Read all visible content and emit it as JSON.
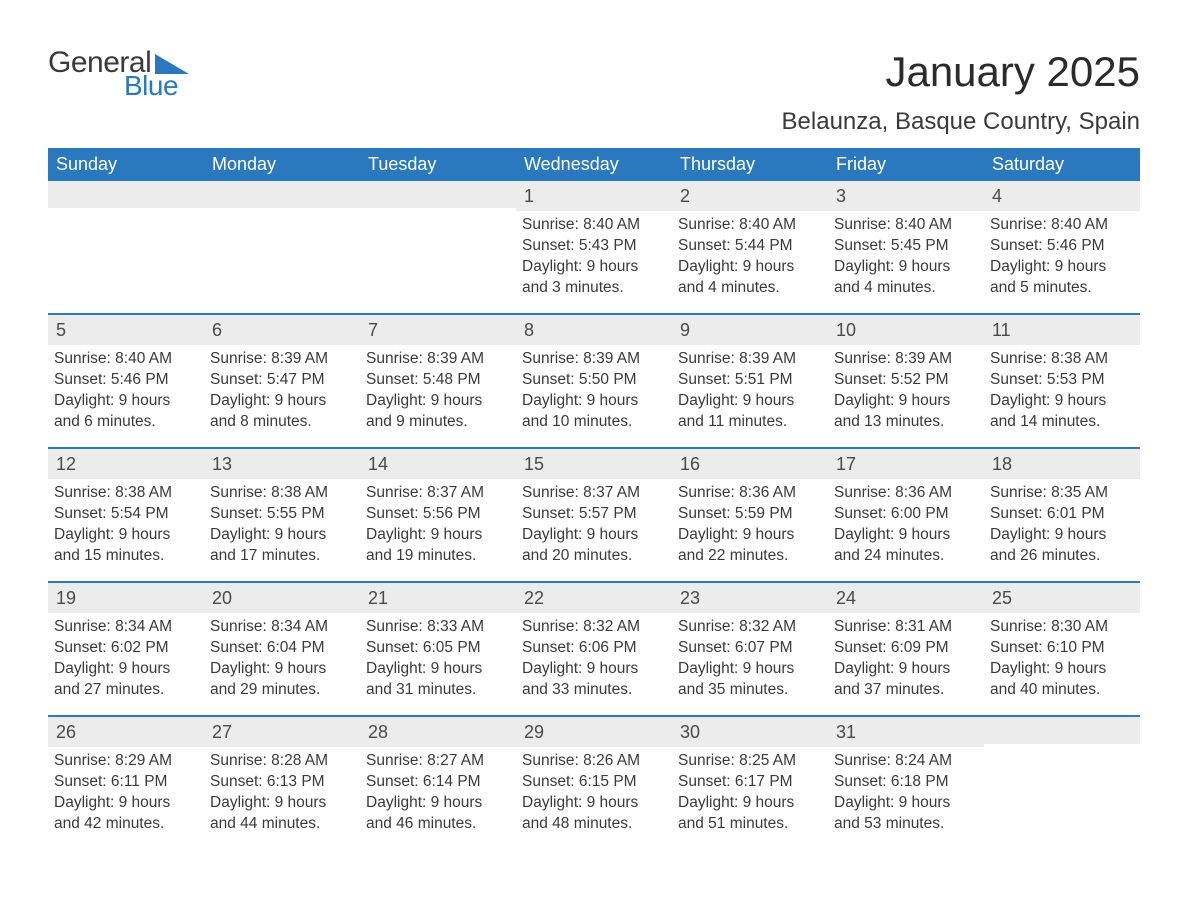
{
  "logo": {
    "general": "General",
    "blue": "Blue",
    "accent_color": "#2a78bd"
  },
  "title": "January 2025",
  "subtitle": "Belaunza, Basque Country, Spain",
  "colors": {
    "header_bg": "#2a78bd",
    "header_text": "#ffffff",
    "daynum_bg": "#ececec",
    "week_divider": "#2a78bd",
    "body_text": "#3a3a3a",
    "background": "#ffffff"
  },
  "typography": {
    "title_fontsize": 42,
    "subtitle_fontsize": 24,
    "header_fontsize": 18,
    "body_fontsize": 15.5,
    "daynum_fontsize": 18
  },
  "day_headers": [
    "Sunday",
    "Monday",
    "Tuesday",
    "Wednesday",
    "Thursday",
    "Friday",
    "Saturday"
  ],
  "labels": {
    "sunrise": "Sunrise:",
    "sunset": "Sunset:",
    "daylight": "Daylight:"
  },
  "weeks": [
    [
      {
        "empty": true
      },
      {
        "empty": true
      },
      {
        "empty": true
      },
      {
        "n": "1",
        "sunrise": "8:40 AM",
        "sunset": "5:43 PM",
        "daylight": "9 hours and 3 minutes."
      },
      {
        "n": "2",
        "sunrise": "8:40 AM",
        "sunset": "5:44 PM",
        "daylight": "9 hours and 4 minutes."
      },
      {
        "n": "3",
        "sunrise": "8:40 AM",
        "sunset": "5:45 PM",
        "daylight": "9 hours and 4 minutes."
      },
      {
        "n": "4",
        "sunrise": "8:40 AM",
        "sunset": "5:46 PM",
        "daylight": "9 hours and 5 minutes."
      }
    ],
    [
      {
        "n": "5",
        "sunrise": "8:40 AM",
        "sunset": "5:46 PM",
        "daylight": "9 hours and 6 minutes."
      },
      {
        "n": "6",
        "sunrise": "8:39 AM",
        "sunset": "5:47 PM",
        "daylight": "9 hours and 8 minutes."
      },
      {
        "n": "7",
        "sunrise": "8:39 AM",
        "sunset": "5:48 PM",
        "daylight": "9 hours and 9 minutes."
      },
      {
        "n": "8",
        "sunrise": "8:39 AM",
        "sunset": "5:50 PM",
        "daylight": "9 hours and 10 minutes."
      },
      {
        "n": "9",
        "sunrise": "8:39 AM",
        "sunset": "5:51 PM",
        "daylight": "9 hours and 11 minutes."
      },
      {
        "n": "10",
        "sunrise": "8:39 AM",
        "sunset": "5:52 PM",
        "daylight": "9 hours and 13 minutes."
      },
      {
        "n": "11",
        "sunrise": "8:38 AM",
        "sunset": "5:53 PM",
        "daylight": "9 hours and 14 minutes."
      }
    ],
    [
      {
        "n": "12",
        "sunrise": "8:38 AM",
        "sunset": "5:54 PM",
        "daylight": "9 hours and 15 minutes."
      },
      {
        "n": "13",
        "sunrise": "8:38 AM",
        "sunset": "5:55 PM",
        "daylight": "9 hours and 17 minutes."
      },
      {
        "n": "14",
        "sunrise": "8:37 AM",
        "sunset": "5:56 PM",
        "daylight": "9 hours and 19 minutes."
      },
      {
        "n": "15",
        "sunrise": "8:37 AM",
        "sunset": "5:57 PM",
        "daylight": "9 hours and 20 minutes."
      },
      {
        "n": "16",
        "sunrise": "8:36 AM",
        "sunset": "5:59 PM",
        "daylight": "9 hours and 22 minutes."
      },
      {
        "n": "17",
        "sunrise": "8:36 AM",
        "sunset": "6:00 PM",
        "daylight": "9 hours and 24 minutes."
      },
      {
        "n": "18",
        "sunrise": "8:35 AM",
        "sunset": "6:01 PM",
        "daylight": "9 hours and 26 minutes."
      }
    ],
    [
      {
        "n": "19",
        "sunrise": "8:34 AM",
        "sunset": "6:02 PM",
        "daylight": "9 hours and 27 minutes."
      },
      {
        "n": "20",
        "sunrise": "8:34 AM",
        "sunset": "6:04 PM",
        "daylight": "9 hours and 29 minutes."
      },
      {
        "n": "21",
        "sunrise": "8:33 AM",
        "sunset": "6:05 PM",
        "daylight": "9 hours and 31 minutes."
      },
      {
        "n": "22",
        "sunrise": "8:32 AM",
        "sunset": "6:06 PM",
        "daylight": "9 hours and 33 minutes."
      },
      {
        "n": "23",
        "sunrise": "8:32 AM",
        "sunset": "6:07 PM",
        "daylight": "9 hours and 35 minutes."
      },
      {
        "n": "24",
        "sunrise": "8:31 AM",
        "sunset": "6:09 PM",
        "daylight": "9 hours and 37 minutes."
      },
      {
        "n": "25",
        "sunrise": "8:30 AM",
        "sunset": "6:10 PM",
        "daylight": "9 hours and 40 minutes."
      }
    ],
    [
      {
        "n": "26",
        "sunrise": "8:29 AM",
        "sunset": "6:11 PM",
        "daylight": "9 hours and 42 minutes."
      },
      {
        "n": "27",
        "sunrise": "8:28 AM",
        "sunset": "6:13 PM",
        "daylight": "9 hours and 44 minutes."
      },
      {
        "n": "28",
        "sunrise": "8:27 AM",
        "sunset": "6:14 PM",
        "daylight": "9 hours and 46 minutes."
      },
      {
        "n": "29",
        "sunrise": "8:26 AM",
        "sunset": "6:15 PM",
        "daylight": "9 hours and 48 minutes."
      },
      {
        "n": "30",
        "sunrise": "8:25 AM",
        "sunset": "6:17 PM",
        "daylight": "9 hours and 51 minutes."
      },
      {
        "n": "31",
        "sunrise": "8:24 AM",
        "sunset": "6:18 PM",
        "daylight": "9 hours and 53 minutes."
      },
      {
        "empty": true
      }
    ]
  ]
}
